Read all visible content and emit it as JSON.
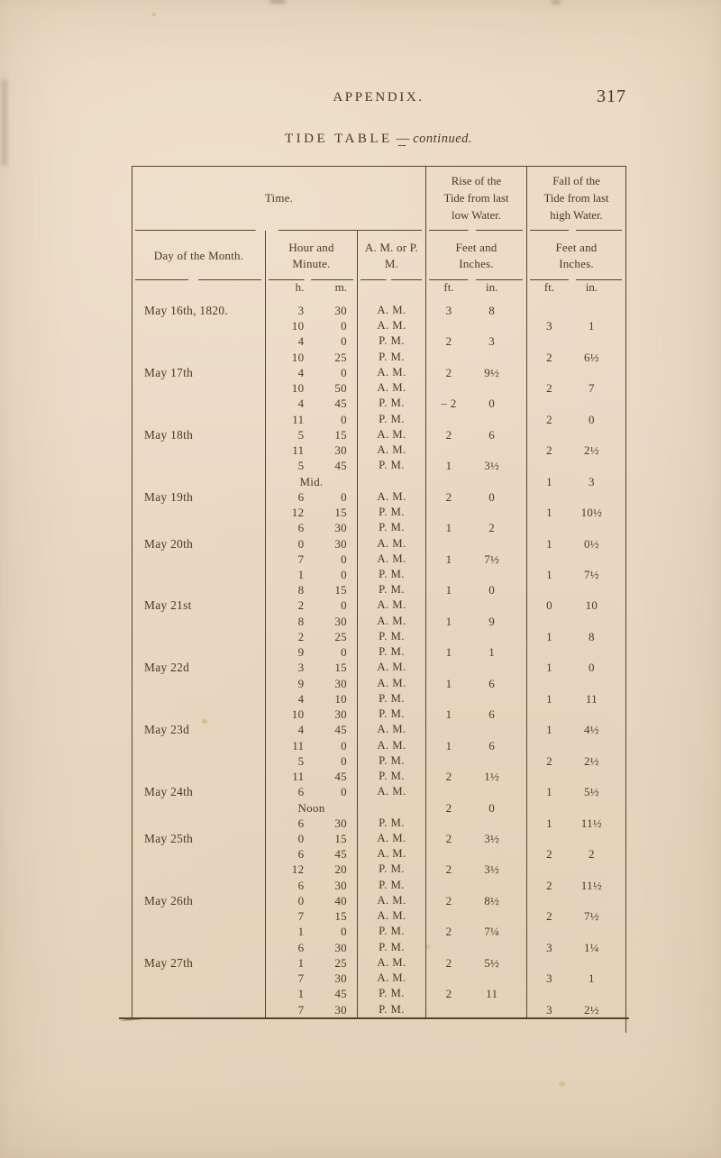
{
  "page": {
    "running_head": "APPENDIX.",
    "page_number": "317",
    "title_main": "TIDE TABLE",
    "title_dash": "—",
    "title_cont": "continued."
  },
  "colors": {
    "paper": "#e8d9c2",
    "ink": "#50371f",
    "rule": "#5b4229"
  },
  "table": {
    "header": {
      "time": "Time.",
      "rise": [
        "Rise of the",
        "Tide from last",
        "low Water."
      ],
      "fall": [
        "Fall of the",
        "Tide from last",
        "high Water."
      ],
      "columns": [
        "Day of the Month.",
        "Hour and Minute.",
        "A. M. or P. M.",
        "Feet and Inches.",
        "Feet and Inches."
      ],
      "units": {
        "hour": "h.",
        "minute": "m.",
        "feet": "ft.",
        "inches": "in."
      }
    },
    "rows": [
      [
        "May 16th, 1820.",
        "3",
        "30",
        "A. M.",
        "3",
        "8",
        "",
        ""
      ],
      [
        "",
        "10",
        "0",
        "A. M.",
        "",
        "",
        "3",
        "1"
      ],
      [
        "",
        "4",
        "0",
        "P. M.",
        "2",
        "3",
        "",
        ""
      ],
      [
        "",
        "10",
        "25",
        "P. M.",
        "",
        "",
        "2",
        "6½"
      ],
      [
        "May 17th",
        "4",
        "0",
        "A. M.",
        "2",
        "9½",
        "",
        ""
      ],
      [
        "",
        "10",
        "50",
        "A. M.",
        "",
        "",
        "2",
        "7"
      ],
      [
        "",
        "4",
        "45",
        "P. M.",
        "– 2",
        "0",
        "",
        ""
      ],
      [
        "",
        "11",
        "0",
        "P. M.",
        "",
        "",
        "2",
        "0"
      ],
      [
        "May 18th",
        "5",
        "15",
        "A. M.",
        "2",
        "6",
        "",
        ""
      ],
      [
        "",
        "11",
        "30",
        "A. M.",
        "",
        "",
        "2",
        "2½"
      ],
      [
        "",
        "5",
        "45",
        "P. M.",
        "1",
        "3½",
        "",
        ""
      ],
      [
        "",
        "Mid.",
        "",
        "",
        "",
        "",
        "1",
        "3"
      ],
      [
        "May 19th",
        "6",
        "0",
        "A. M.",
        "2",
        "0",
        "",
        ""
      ],
      [
        "",
        "12",
        "15",
        "P. M.",
        "",
        "",
        "1",
        "10½"
      ],
      [
        "",
        "6",
        "30",
        "P. M.",
        "1",
        "2",
        "",
        ""
      ],
      [
        "May 20th",
        "0",
        "30",
        "A. M.",
        "",
        "",
        "1",
        "0½"
      ],
      [
        "",
        "7",
        "0",
        "A. M.",
        "1",
        "7½",
        "",
        ""
      ],
      [
        "",
        "1",
        "0",
        "P. M.",
        "",
        "",
        "1",
        "7½"
      ],
      [
        "",
        "8",
        "15",
        "P. M.",
        "1",
        "0",
        "",
        ""
      ],
      [
        "May 21st",
        "2",
        "0",
        "A. M.",
        "",
        "",
        "0",
        "10"
      ],
      [
        "",
        "8",
        "30",
        "A. M.",
        "1",
        "9",
        "",
        ""
      ],
      [
        "",
        "2",
        "25",
        "P. M.",
        "",
        "",
        "1",
        "8"
      ],
      [
        "",
        "9",
        "0",
        "P. M.",
        "1",
        "1",
        "",
        ""
      ],
      [
        "May 22d",
        "3",
        "15",
        "A. M.",
        "",
        "",
        "1",
        "0"
      ],
      [
        "",
        "9",
        "30",
        "A. M.",
        "1",
        "6",
        "",
        ""
      ],
      [
        "",
        "4",
        "10",
        "P. M.",
        "",
        "",
        "1",
        "11"
      ],
      [
        "",
        "10",
        "30",
        "P. M.",
        "1",
        "6",
        "",
        ""
      ],
      [
        "May 23d",
        "4",
        "45",
        "A. M.",
        "",
        "",
        "1",
        "4½"
      ],
      [
        "",
        "11",
        "0",
        "A. M.",
        "1",
        "6",
        "",
        ""
      ],
      [
        "",
        "5",
        "0",
        "P. M.",
        "",
        "",
        "2",
        "2½"
      ],
      [
        "",
        "11",
        "45",
        "P. M.",
        "2",
        "1½",
        "",
        ""
      ],
      [
        "May 24th",
        "6",
        "0",
        "A. M.",
        "",
        "",
        "1",
        "5½"
      ],
      [
        "",
        "Noon",
        "",
        "",
        "2",
        "0",
        "",
        ""
      ],
      [
        "",
        "6",
        "30",
        "P. M.",
        "",
        "",
        "1",
        "11½"
      ],
      [
        "May 25th",
        "0",
        "15",
        "A. M.",
        "2",
        "3½",
        "",
        ""
      ],
      [
        "",
        "6",
        "45",
        "A. M.",
        "",
        "",
        "2",
        "2"
      ],
      [
        "",
        "12",
        "20",
        "P. M.",
        "2",
        "3½",
        "",
        ""
      ],
      [
        "",
        "6",
        "30",
        "P. M.",
        "",
        "",
        "2",
        "11½"
      ],
      [
        "May 26th",
        "0",
        "40",
        "A. M.",
        "2",
        "8½",
        "",
        ""
      ],
      [
        "",
        "7",
        "15",
        "A. M.",
        "",
        "",
        "2",
        "7½"
      ],
      [
        "",
        "1",
        "0",
        "P. M.",
        "2",
        "7¼",
        "",
        ""
      ],
      [
        "",
        "6",
        "30",
        "P. M.",
        "",
        "",
        "3",
        "1¼"
      ],
      [
        "May 27th",
        "1",
        "25",
        "A. M.",
        "2",
        "5½",
        "",
        ""
      ],
      [
        "",
        "7",
        "30",
        "A. M.",
        "",
        "",
        "3",
        "1"
      ],
      [
        "",
        "1",
        "45",
        "P. M.",
        "2",
        "11",
        "",
        ""
      ],
      [
        "",
        "7",
        "30",
        "P. M.",
        "",
        "",
        "3",
        "2½"
      ]
    ]
  }
}
